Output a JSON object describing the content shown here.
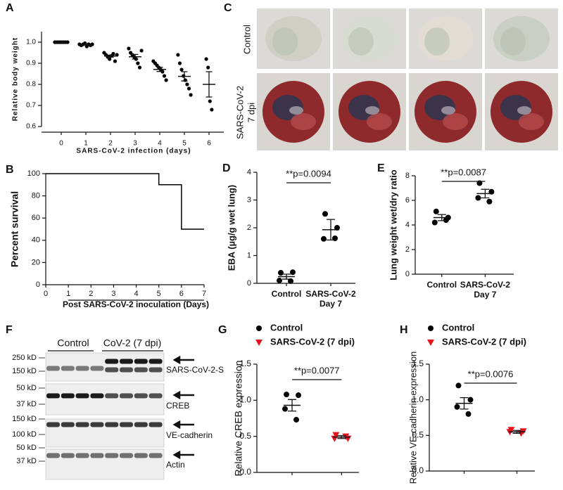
{
  "chart_data": [
    {
      "panel": "A",
      "type": "scatter",
      "y_label": "Relative body weight",
      "x_label": "SARS-CoV-2 infection (days)",
      "x": [
        0,
        1,
        2,
        3,
        4,
        5,
        6
      ],
      "values": [
        [
          1,
          1,
          1,
          1,
          1,
          1,
          1,
          1
        ],
        [
          0.99,
          0.985,
          0.99,
          0.995,
          0.98,
          0.99,
          0.985,
          0.99
        ],
        [
          0.95,
          0.94,
          0.93,
          0.92,
          0.935,
          0.945,
          0.91,
          0.94
        ],
        [
          0.97,
          0.95,
          0.94,
          0.93,
          0.92,
          0.9,
          0.88,
          0.96
        ],
        [
          0.91,
          0.9,
          0.89,
          0.88,
          0.87,
          0.86,
          0.84,
          0.82
        ],
        [
          0.94,
          0.9,
          0.87,
          0.84,
          0.82,
          0.8,
          0.78,
          0.75
        ],
        [
          0.92,
          0.88,
          0.72,
          0.68
        ]
      ],
      "means": [
        1,
        0.988,
        0.934,
        0.931,
        0.871,
        0.838,
        0.8
      ],
      "sems": [
        0.001,
        0.002,
        0.005,
        0.011,
        0.01,
        0.022,
        0.06
      ],
      "color": "#000000",
      "xlim": [
        -0.8,
        6.6
      ],
      "xticks": [
        0,
        1,
        2,
        3,
        4,
        5,
        6
      ],
      "ylim": [
        0.6,
        1.05
      ],
      "yticks": [
        0.6,
        0.7,
        0.8,
        0.9,
        {
          "value": 1,
          "label": "1.0"
        }
      ]
    },
    {
      "panel": "B",
      "type": "line",
      "y_label": "Percent survival",
      "x_label": "Post SARS-CoV-2 inoculation (Days)",
      "x": [
        0,
        5,
        5,
        6,
        6,
        7
      ],
      "values": [
        100,
        100,
        90,
        90,
        50,
        50
      ],
      "color": "#000000",
      "xlim": [
        0,
        7
      ],
      "xticks": [
        0,
        1,
        2,
        3,
        4,
        5,
        6,
        7
      ],
      "ylim": [
        0,
        100
      ],
      "yticks": [
        0,
        20,
        40,
        60,
        80,
        100
      ]
    },
    {
      "panel": "D",
      "type": "dot",
      "y_label": "EBA (µg/g wet lung)",
      "categories": [
        "Control",
        "SARS-CoV-2 Day 7"
      ],
      "values": [
        [
          0.38,
          0.4,
          0.1,
          0.08
        ],
        [
          2.5,
          2.0,
          1.6,
          1.62
        ]
      ],
      "means": [
        0.24,
        1.93
      ],
      "sems": [
        0.09,
        0.37
      ],
      "color": "#000000",
      "annotation": "**p=0.0094",
      "ylim": [
        0,
        4
      ],
      "yticks": [
        0,
        1,
        2,
        3,
        4
      ]
    },
    {
      "panel": "E",
      "type": "dot",
      "y_label": "Lung weight wet/dry ratio",
      "categories": [
        "Control",
        "SARS-CoV-2 Day 7"
      ],
      "values": [
        [
          5.1,
          4.6,
          4.2,
          4.4
        ],
        [
          7.4,
          6.7,
          6.2,
          5.9
        ]
      ],
      "means": [
        4.6,
        6.55
      ],
      "sems": [
        0.25,
        0.35
      ],
      "color": "#000000",
      "annotation": "**p=0.0087",
      "ylim": [
        0,
        8
      ],
      "yticks": [
        0,
        2,
        4,
        6,
        8
      ]
    },
    {
      "panel": "G",
      "type": "dot",
      "y_label": "Relative CREB expression",
      "series": [
        {
          "name": "Control",
          "color": "#000000",
          "marker": "circle",
          "values": [
            1.08,
            1.07,
            0.88,
            0.73
          ],
          "mean": 0.93,
          "sem": 0.08
        },
        {
          "name": "SARS-CoV-2 (7 dpi)",
          "color": "#e8141b",
          "marker": "triangle",
          "values": [
            0.52,
            0.47,
            0.47,
            0.5
          ],
          "mean": 0.49,
          "sem": 0.02
        }
      ],
      "annotation": "**p=0.0077",
      "ylim": [
        0,
        1.5
      ],
      "yticks": [
        {
          "value": 0,
          "label": "0.0"
        },
        0.5,
        {
          "value": 1,
          "label": "1.0"
        },
        1.5
      ]
    },
    {
      "panel": "H",
      "type": "dot",
      "y_label": "Relative VE-cadherin expression",
      "series": [
        {
          "name": "Control",
          "color": "#000000",
          "marker": "circle",
          "values": [
            1.2,
            1.0,
            0.9,
            0.8
          ],
          "mean": 0.95,
          "sem": 0.08
        },
        {
          "name": "SARS-CoV-2 (7 dpi)",
          "color": "#e8141b",
          "marker": "triangle",
          "values": [
            0.58,
            0.56,
            0.55,
            0.53
          ],
          "mean": 0.55,
          "sem": 0.02
        }
      ],
      "annotation": "**p=0.0076",
      "ylim": [
        0,
        1.5
      ],
      "yticks": [
        {
          "value": 0,
          "label": "0.0"
        },
        0.5,
        {
          "value": 1,
          "label": "1.0"
        },
        1.5
      ]
    }
  ],
  "panel_c": {
    "panel": "C",
    "row_labels": [
      [
        "Control"
      ],
      [
        "SARS-CoV-2",
        "7 dpi"
      ]
    ]
  },
  "panel_f": {
    "panel": "F",
    "groups": [
      "Control",
      "CoV-2 (7 dpi)"
    ],
    "blots": [
      {
        "markers": [
          "250 kD",
          "150 kD"
        ],
        "label": "SARS-CoV-2-S"
      },
      {
        "markers": [
          "50 kD",
          "37 kD"
        ],
        "label": "CREB"
      },
      {
        "markers": [
          "150 kD",
          "100 kD"
        ],
        "label": "VE-cadherin"
      },
      {
        "markers": [
          "50 kD",
          "37 kD"
        ],
        "label": "Actin"
      }
    ]
  }
}
